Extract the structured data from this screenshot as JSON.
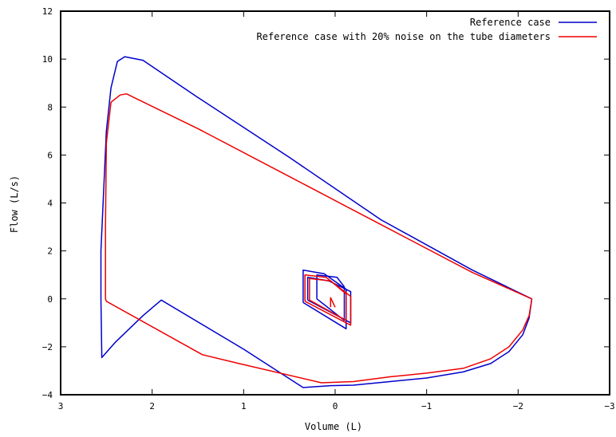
{
  "chart_data": {
    "type": "line",
    "title": "",
    "xlabel": "Volume (L)",
    "ylabel": "Flow (L/s)",
    "xlim": [
      3,
      -3
    ],
    "ylim": [
      -4,
      12
    ],
    "x_axis_reversed": true,
    "x_ticks": [
      3,
      2,
      1,
      0,
      -1,
      -2,
      -3
    ],
    "x_tick_labels": [
      "3",
      "2",
      "1",
      "0",
      "−1",
      "−2",
      "−3"
    ],
    "y_ticks": [
      -4,
      -2,
      0,
      2,
      4,
      6,
      8,
      10,
      12
    ],
    "y_tick_labels": [
      "−4",
      "−2",
      "0",
      "2",
      "4",
      "6",
      "8",
      "10",
      "12"
    ],
    "grid": false,
    "legend_position": "top-right",
    "series": [
      {
        "name": "Reference case",
        "color": "#0000cc",
        "x": [
          -2.15,
          -2.12,
          -2.05,
          -1.9,
          -1.7,
          -1.4,
          -1.0,
          -0.6,
          -0.2,
          0.05,
          0.35,
          1.0,
          1.9,
          2.1,
          2.4,
          2.55,
          2.56,
          2.56,
          2.5,
          2.45,
          2.38,
          2.3,
          2.1,
          1.5,
          0.5,
          -0.5,
          -1.5,
          -2.15
        ],
        "y": [
          0,
          -0.8,
          -1.5,
          -2.2,
          -2.7,
          -3.05,
          -3.3,
          -3.45,
          -3.6,
          -3.62,
          -3.7,
          -2.1,
          -0.05,
          -0.7,
          -1.8,
          -2.45,
          0.0,
          2.0,
          7.0,
          8.8,
          9.9,
          10.1,
          9.95,
          8.4,
          5.9,
          3.3,
          1.2,
          0
        ],
        "cycles_x": [
          [
            0.35,
            0.35,
            0.12,
            -0.12,
            -0.12,
            0.35
          ],
          [
            0.3,
            0.3,
            0.07,
            -0.17,
            -0.17,
            0.3
          ],
          [
            0.2,
            0.2,
            -0.02,
            -0.1,
            -0.1,
            0.2
          ]
        ],
        "cycles_y": [
          [
            -0.15,
            1.2,
            1.05,
            0.4,
            -1.25,
            -0.15
          ],
          [
            -0.05,
            0.9,
            0.75,
            0.3,
            -1.0,
            -0.05
          ],
          [
            0.0,
            1.0,
            0.9,
            0.5,
            -0.9,
            0.0
          ]
        ]
      },
      {
        "name": "Reference case with 20% noise on the tube diameters",
        "color": "#ee0000",
        "x": [
          -2.15,
          -2.12,
          -2.05,
          -1.9,
          -1.7,
          -1.4,
          -1.0,
          -0.6,
          -0.2,
          0.15,
          1.05,
          1.45,
          2.5,
          2.51,
          2.51,
          2.5,
          2.45,
          2.35,
          2.28,
          2.2,
          1.5,
          0.5,
          -0.5,
          -1.5,
          -2.15
        ],
        "y": [
          0,
          -0.7,
          -1.3,
          -2.0,
          -2.5,
          -2.9,
          -3.1,
          -3.25,
          -3.45,
          -3.5,
          -2.7,
          -2.33,
          -0.1,
          0.0,
          3.0,
          6.5,
          8.2,
          8.5,
          8.55,
          8.4,
          7.1,
          5.1,
          3.1,
          1.1,
          0
        ],
        "cycles_x": [
          [
            0.33,
            0.33,
            0.1,
            -0.17,
            -0.17,
            0.33
          ],
          [
            0.28,
            0.28,
            0.05,
            -0.12,
            -0.12,
            0.28
          ],
          [
            0.05,
            0.05,
            0.0
          ]
        ],
        "cycles_y": [
          [
            -0.1,
            1.0,
            0.9,
            0.1,
            -1.1,
            -0.1
          ],
          [
            -0.05,
            0.85,
            0.75,
            0.2,
            -0.9,
            -0.05
          ],
          [
            -0.35,
            0.05,
            -0.35
          ]
        ]
      }
    ]
  }
}
